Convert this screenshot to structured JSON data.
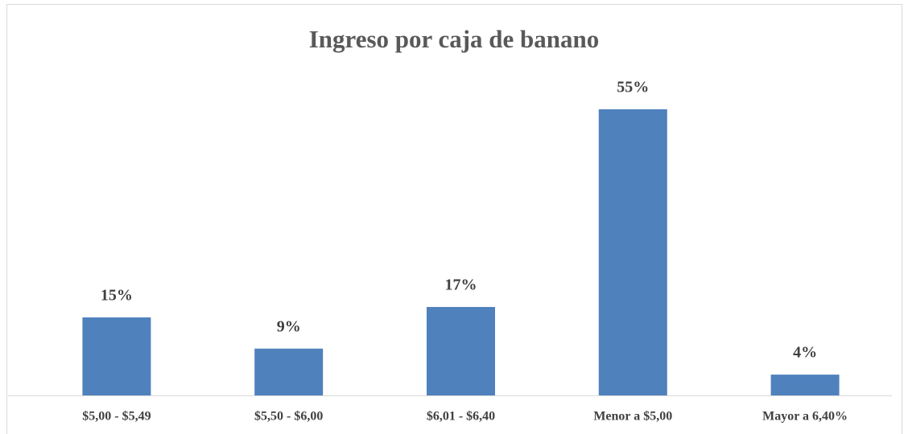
{
  "chart_data": {
    "type": "bar",
    "title": "Ingreso por caja de banano",
    "categories": [
      "$5,00 - $5,49",
      "$5,50 - $6,00",
      "$6,01 - $6,40",
      "Menor a $5,00",
      "Mayor a 6,40%"
    ],
    "values": [
      15,
      9,
      17,
      55,
      4
    ],
    "value_labels": [
      "15%",
      "9%",
      "17%",
      "55%",
      "4%"
    ],
    "color": "#4f81bd"
  }
}
